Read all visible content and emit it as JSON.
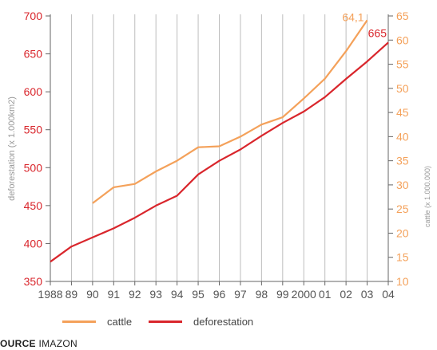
{
  "chart_data": {
    "type": "line",
    "x": [
      "1988",
      "89",
      "90",
      "91",
      "92",
      "93",
      "94",
      "95",
      "96",
      "97",
      "98",
      "99",
      "2000",
      "01",
      "02",
      "03",
      "04"
    ],
    "left_axis": {
      "label": "deforestation (x 1.000km2)",
      "ylim": [
        350,
        700
      ],
      "ticks": [
        350,
        400,
        450,
        500,
        550,
        600,
        650,
        700
      ],
      "color": "#d9262c"
    },
    "right_axis": {
      "label": "cattle (x 1.000.000)",
      "ylim": [
        10,
        65
      ],
      "ticks": [
        10,
        15,
        20,
        25,
        30,
        35,
        40,
        45,
        50,
        55,
        60,
        65
      ],
      "color": "#f4a15a"
    },
    "series": [
      {
        "name": "cattle",
        "axis": "right",
        "color": "#f4a15a",
        "values": [
          null,
          null,
          26.2,
          29.5,
          30.2,
          32.8,
          35.0,
          37.8,
          38.0,
          40.0,
          42.5,
          44.0,
          47.9,
          52.0,
          57.7,
          64.1,
          null
        ],
        "end_label": "64,1"
      },
      {
        "name": "deforestation",
        "axis": "left",
        "color": "#d9262c",
        "values": [
          376,
          396,
          408,
          420,
          434,
          450,
          463,
          491,
          509,
          524,
          542,
          559,
          574,
          593,
          617,
          640,
          665
        ],
        "end_label": "665"
      }
    ],
    "grid": "vertical",
    "legend": "bottom"
  },
  "source": {
    "label": "OURCE",
    "name": "IMAZON"
  }
}
